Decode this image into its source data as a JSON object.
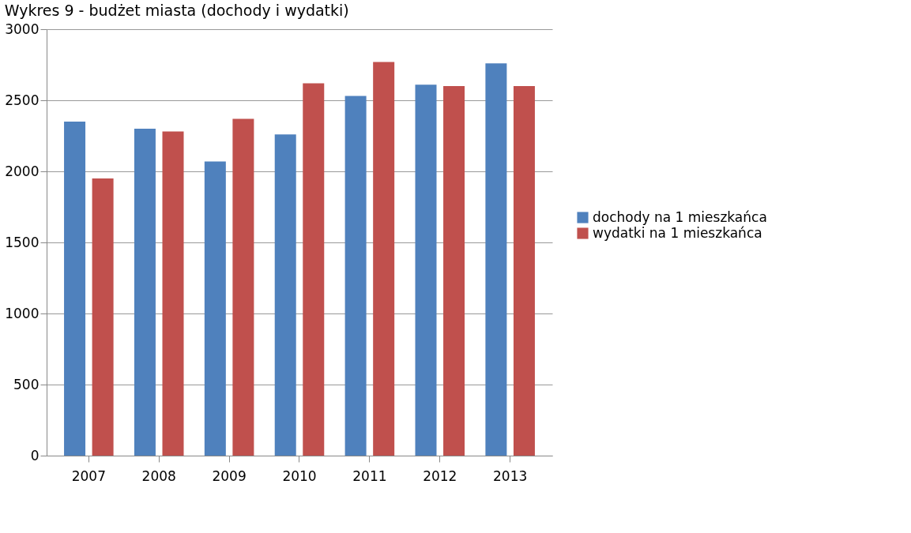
{
  "chart_data": {
    "type": "bar",
    "title": "Wykres 9 - budżet miasta (dochody i wydatki)",
    "categories": [
      "2007",
      "2008",
      "2009",
      "2010",
      "2011",
      "2012",
      "2013"
    ],
    "series": [
      {
        "name": "dochody na 1 mieszkańca",
        "color": "#4f81bd",
        "values": [
          2350,
          2300,
          2070,
          2260,
          2530,
          2610,
          2760
        ]
      },
      {
        "name": "wydatki na 1 mieszkańca",
        "color": "#c0504d",
        "values": [
          1950,
          2280,
          2370,
          2620,
          2770,
          2600,
          2600
        ]
      }
    ],
    "ylim": [
      0,
      3000
    ],
    "yticks": [
      0,
      500,
      1000,
      1500,
      2000,
      2500,
      3000
    ],
    "grid": "y",
    "legend": "right"
  }
}
